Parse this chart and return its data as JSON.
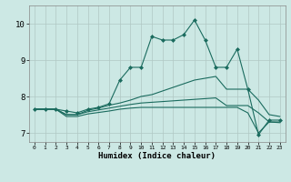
{
  "xlabel": "Humidex (Indice chaleur)",
  "ylabel": "",
  "xlim": [
    -0.5,
    23.5
  ],
  "ylim": [
    6.75,
    10.5
  ],
  "xticks": [
    0,
    1,
    2,
    3,
    4,
    5,
    6,
    7,
    8,
    9,
    10,
    11,
    12,
    13,
    14,
    15,
    16,
    17,
    18,
    19,
    20,
    21,
    22,
    23
  ],
  "yticks": [
    7,
    8,
    9,
    10
  ],
  "background_color": "#cce8e4",
  "grid_color": "#b0c8c4",
  "line_color": "#1a6b5e",
  "line1_x": [
    0,
    1,
    2,
    3,
    4,
    5,
    6,
    7,
    8,
    9,
    10,
    11,
    12,
    13,
    14,
    15,
    16,
    17,
    18,
    19,
    20,
    21,
    22,
    23
  ],
  "line1_y": [
    7.65,
    7.65,
    7.65,
    7.6,
    7.55,
    7.65,
    7.7,
    7.8,
    8.45,
    8.8,
    8.8,
    9.65,
    9.55,
    9.55,
    9.7,
    10.1,
    9.55,
    8.8,
    8.8,
    9.3,
    8.2,
    6.95,
    7.35,
    7.35
  ],
  "line2_x": [
    0,
    1,
    2,
    3,
    4,
    5,
    6,
    7,
    8,
    9,
    10,
    11,
    12,
    13,
    14,
    15,
    16,
    17,
    18,
    19,
    20,
    21,
    22,
    23
  ],
  "line2_y": [
    7.65,
    7.65,
    7.65,
    7.5,
    7.5,
    7.62,
    7.68,
    7.76,
    7.82,
    7.9,
    8.0,
    8.05,
    8.15,
    8.25,
    8.35,
    8.45,
    8.5,
    8.55,
    8.2,
    8.2,
    8.2,
    7.9,
    7.5,
    7.45
  ],
  "line3_x": [
    0,
    1,
    2,
    3,
    4,
    5,
    6,
    7,
    8,
    9,
    10,
    11,
    12,
    13,
    14,
    15,
    16,
    17,
    18,
    19,
    20,
    21,
    22,
    23
  ],
  "line3_y": [
    7.65,
    7.65,
    7.65,
    7.5,
    7.5,
    7.58,
    7.63,
    7.68,
    7.73,
    7.78,
    7.82,
    7.84,
    7.86,
    7.88,
    7.9,
    7.92,
    7.94,
    7.96,
    7.75,
    7.75,
    7.75,
    7.55,
    7.3,
    7.3
  ],
  "line4_x": [
    0,
    1,
    2,
    3,
    4,
    5,
    6,
    7,
    8,
    9,
    10,
    11,
    12,
    13,
    14,
    15,
    16,
    17,
    18,
    19,
    20,
    21,
    22,
    23
  ],
  "line4_y": [
    7.65,
    7.65,
    7.65,
    7.45,
    7.45,
    7.52,
    7.56,
    7.6,
    7.65,
    7.68,
    7.7,
    7.7,
    7.7,
    7.7,
    7.7,
    7.7,
    7.7,
    7.7,
    7.7,
    7.7,
    7.55,
    7.0,
    7.3,
    7.28
  ]
}
